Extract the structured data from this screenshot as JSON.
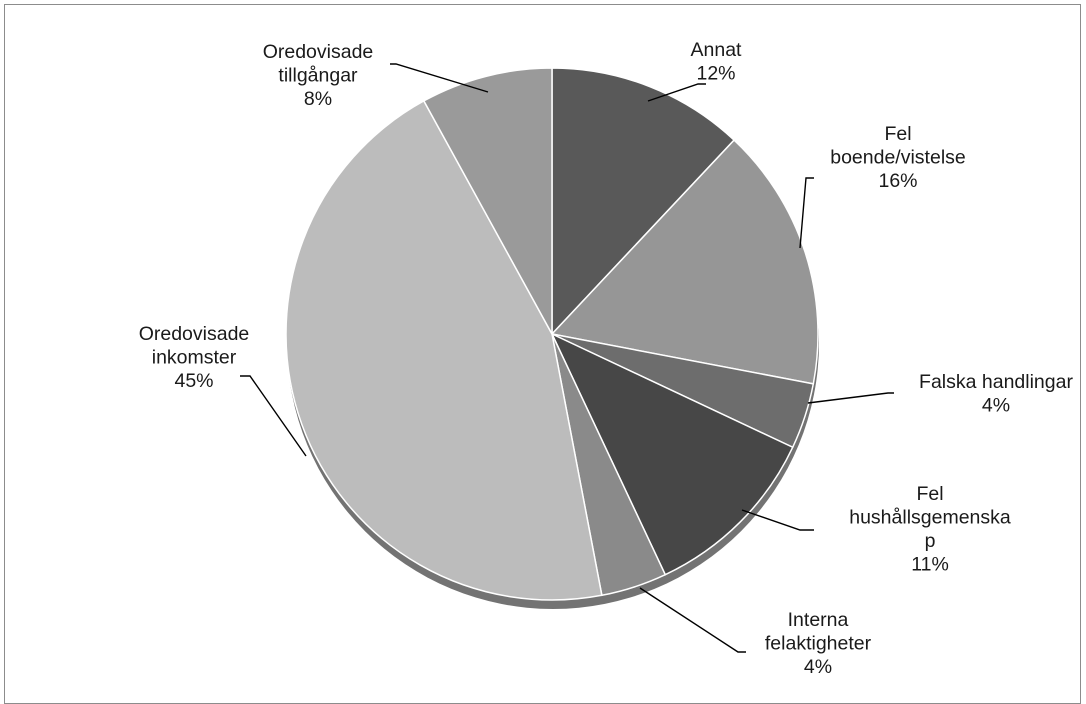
{
  "chart_data": {
    "type": "pie",
    "title": "",
    "slices": [
      {
        "label_lines": [
          "Annat"
        ],
        "value": "12%",
        "color": "#595959"
      },
      {
        "label_lines": [
          "Fel",
          "boende/vistelse"
        ],
        "value": "16%",
        "color": "#969696"
      },
      {
        "label_lines": [
          "Falska handlingar"
        ],
        "value": "4%",
        "color": "#6d6d6d"
      },
      {
        "label_lines": [
          "Fel",
          "hushållsgemenska",
          "p"
        ],
        "value": "11%",
        "color": "#474747"
      },
      {
        "label_lines": [
          "Interna",
          "felaktigheter"
        ],
        "value": "4%",
        "color": "#8a8a8a"
      },
      {
        "label_lines": [
          "Oredovisade",
          "inkomster"
        ],
        "value": "45%",
        "color": "#bcbcbc"
      },
      {
        "label_lines": [
          "Oredovisade",
          "tillgångar"
        ],
        "value": "8%",
        "color": "#9a9a9a"
      }
    ],
    "fractions": [
      0.12,
      0.16,
      0.04,
      0.11,
      0.04,
      0.45,
      0.08
    ],
    "legend": "none",
    "labels": "outside with leader lines"
  }
}
